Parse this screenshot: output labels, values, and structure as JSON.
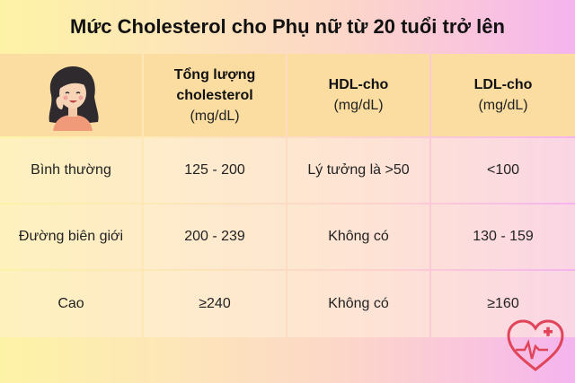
{
  "title": "Mức Cholesterol cho Phụ nữ từ 20 tuổi trở lên",
  "headers": [
    {
      "bold_line1": "Tổng lượng",
      "bold_line2": "cholesterol",
      "unit": "(mg/dL)"
    },
    {
      "bold_line1": "HDL-cho",
      "bold_line2": "",
      "unit": "(mg/dL)"
    },
    {
      "bold_line1": "LDL-cho",
      "bold_line2": "",
      "unit": "(mg/dL)"
    }
  ],
  "rows": [
    {
      "label": "Bình thường",
      "total": "125 - 200",
      "hdl": "Lý tưởng là >50",
      "ldl": "<100"
    },
    {
      "label": "Đường biên giới",
      "total": "200 - 239",
      "hdl": "Không có",
      "ldl": "130 - 159"
    },
    {
      "label": "Cao",
      "total": "≥240",
      "hdl": "Không có",
      "ldl": "≥160"
    }
  ],
  "colors": {
    "header_bg": "#fbdda2",
    "logo_red": "#e0455a"
  },
  "icons": {
    "avatar": "smiling-woman-avatar",
    "logo": "heart-pulse-logo"
  }
}
